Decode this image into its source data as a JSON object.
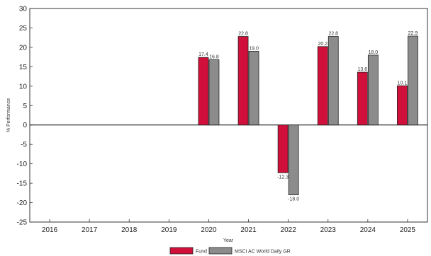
{
  "chart_data": {
    "type": "bar",
    "categories": [
      "2016",
      "2017",
      "2018",
      "2019",
      "2020",
      "2021",
      "2022",
      "2023",
      "2024",
      "2025"
    ],
    "series": [
      {
        "name": "Fund",
        "values": [
          null,
          null,
          null,
          null,
          17.4,
          22.8,
          -12.3,
          20.2,
          13.6,
          10.1
        ],
        "labels": [
          null,
          null,
          null,
          null,
          "17.4",
          "22.8",
          "-12.3",
          "20.2",
          "13.6",
          "10.1"
        ]
      },
      {
        "name": "MSCI AC World Daily GR",
        "values": [
          null,
          null,
          null,
          null,
          16.8,
          19.0,
          -18.0,
          22.8,
          18.0,
          22.9
        ],
        "labels": [
          null,
          null,
          null,
          null,
          "16.8",
          "19.0",
          "-18.0",
          "22.8",
          "18.0",
          "22.9"
        ]
      }
    ],
    "xlabel": "Year",
    "ylabel": "% Performance",
    "ylim": [
      -25,
      30
    ],
    "yticks": [
      "30",
      "25",
      "20",
      "15",
      "10",
      "5",
      "0",
      "-5",
      "-10",
      "-15",
      "-20",
      "-25"
    ],
    "grid": false,
    "legend_position": "bottom-center",
    "colors": {
      "Fund": "#D0103A",
      "MSCI AC World Daily GR": "#8C8C8C",
      "zero_line": "#000000",
      "frame": "#333333"
    }
  }
}
